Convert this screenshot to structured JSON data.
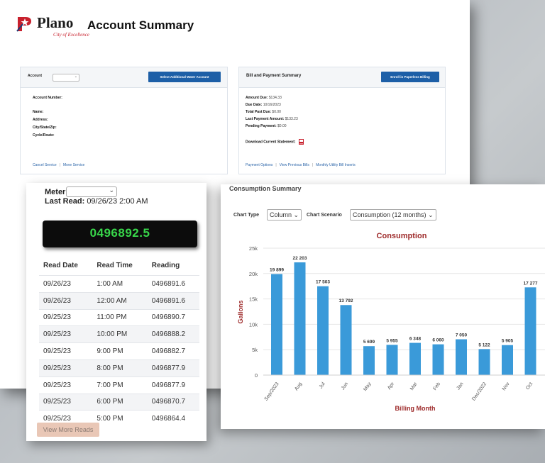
{
  "brand": {
    "name": "Plano",
    "sub": "City of Excellence"
  },
  "page_title": "Account Summary",
  "account_panel": {
    "account_label": "Account",
    "select_button": "Select Additional Water Account",
    "fields": [
      "Account Number:",
      "Name:",
      "Address:",
      "City/State/Zip:",
      "Cycle/Route:"
    ],
    "links": [
      "Cancel Service",
      "Move Service"
    ]
  },
  "bill_panel": {
    "title": "Bill and Payment Summary",
    "enroll_button": "Enroll in Paperless Billing",
    "fields": [
      {
        "label": "Amount Due:",
        "value": "$134.33"
      },
      {
        "label": "Due Date:",
        "value": "10/16/2023"
      },
      {
        "label": "Total Past Due:",
        "value": "$0.00"
      },
      {
        "label": "Last Payment Amount:",
        "value": "$133.23"
      },
      {
        "label": "Pending Payment:",
        "value": "$0.00"
      }
    ],
    "download_label": "Download Current Statement:",
    "links": [
      "Payment Options",
      "View Previous Bills",
      "Monthly Utility Bill Inserts"
    ]
  },
  "meter": {
    "label": "Meter:",
    "last_read_label": "Last Read:",
    "last_read": "09/26/23 2:00 AM",
    "display": "0496892.5",
    "columns": [
      "Read Date",
      "Read Time",
      "Reading"
    ],
    "rows": [
      [
        "09/26/23",
        "1:00 AM",
        "0496891.6"
      ],
      [
        "09/26/23",
        "12:00 AM",
        "0496891.6"
      ],
      [
        "09/25/23",
        "11:00 PM",
        "0496890.7"
      ],
      [
        "09/25/23",
        "10:00 PM",
        "0496888.2"
      ],
      [
        "09/25/23",
        "9:00 PM",
        "0496882.7"
      ],
      [
        "09/25/23",
        "8:00 PM",
        "0496877.9"
      ],
      [
        "09/25/23",
        "7:00 PM",
        "0496877.9"
      ],
      [
        "09/25/23",
        "6:00 PM",
        "0496870.7"
      ],
      [
        "09/25/23",
        "5:00 PM",
        "0496864.4"
      ]
    ],
    "more_button": "View More Reads"
  },
  "consumption": {
    "title": "Consumption Summary",
    "chart_type_label": "Chart Type",
    "chart_type_value": "Column",
    "scenario_label": "Chart Scenario",
    "scenario_value": "Consumption (12 months)"
  },
  "colors": {
    "bar": "#3a9ad9",
    "chart_title": "#9e2b2b",
    "link": "#2a64a8",
    "display_text": "#38d64a"
  },
  "chart_data": {
    "type": "bar",
    "title": "Consumption",
    "xlabel": "Billing Month",
    "ylabel": "Gallons",
    "ylim": [
      0,
      25000
    ],
    "yticks": [
      "0",
      "5k",
      "10k",
      "15k",
      "20k",
      "25k"
    ],
    "categories": [
      "Sep/2023",
      "Aug",
      "Jul",
      "Jun",
      "May",
      "Apr",
      "Mar",
      "Feb",
      "Jan",
      "Dec/2022",
      "Nov",
      "Oct"
    ],
    "values": [
      19899,
      22203,
      17503,
      13792,
      5699,
      5955,
      6348,
      6060,
      7050,
      5122,
      5905,
      17277
    ],
    "data_labels": [
      "19 899",
      "22 203",
      "17 503",
      "13 792",
      "5 699",
      "5 955",
      "6 348",
      "6 060",
      "7 050",
      "5 122",
      "5 905",
      "17 277"
    ]
  }
}
